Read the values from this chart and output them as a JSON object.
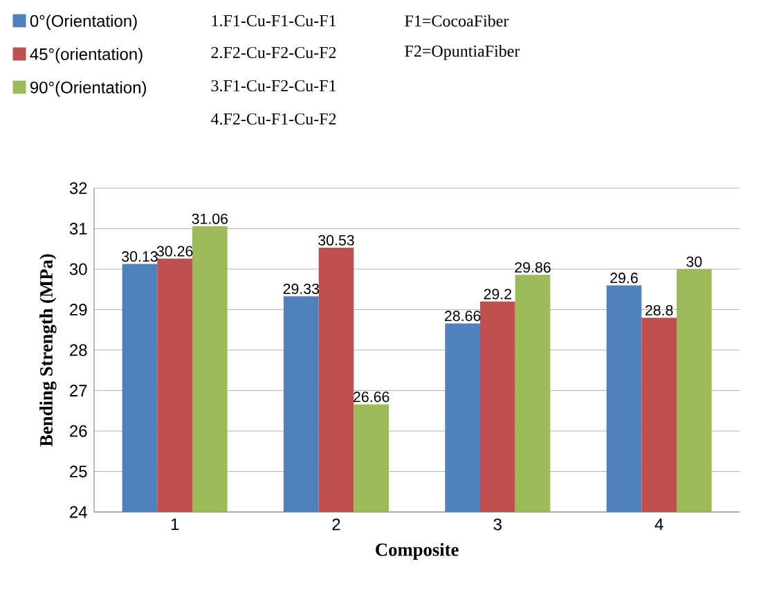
{
  "chart_data": {
    "type": "bar",
    "xlabel": "Composite",
    "ylabel": "Bending Strength (MPa)",
    "categories": [
      "1",
      "2",
      "3",
      "4"
    ],
    "series": [
      {
        "name": "0°(Orientation)",
        "color": "#4f81bd",
        "values": [
          30.13,
          29.33,
          28.66,
          29.6
        ]
      },
      {
        "name": "45°(orientation)",
        "color": "#c0504d",
        "values": [
          30.26,
          30.53,
          29.2,
          28.8
        ]
      },
      {
        "name": "90°(Orientation)",
        "color": "#9bbb59",
        "values": [
          31.06,
          26.66,
          29.86,
          30
        ]
      }
    ],
    "ylim": [
      24,
      32
    ],
    "yticks": [
      24,
      25,
      26,
      27,
      28,
      29,
      30,
      31,
      32
    ],
    "grid": "y",
    "legend": "top left",
    "data_labels": true,
    "annotations": [
      "1.F1-Cu-F1-Cu-F1",
      "2.F2-Cu-F2-Cu-F2",
      "3.F1-Cu-F2-Cu-F1",
      "4.F2-Cu-F1-Cu-F2",
      "F1=CocoaFiber",
      "F2=OpuntiaFiber"
    ]
  }
}
